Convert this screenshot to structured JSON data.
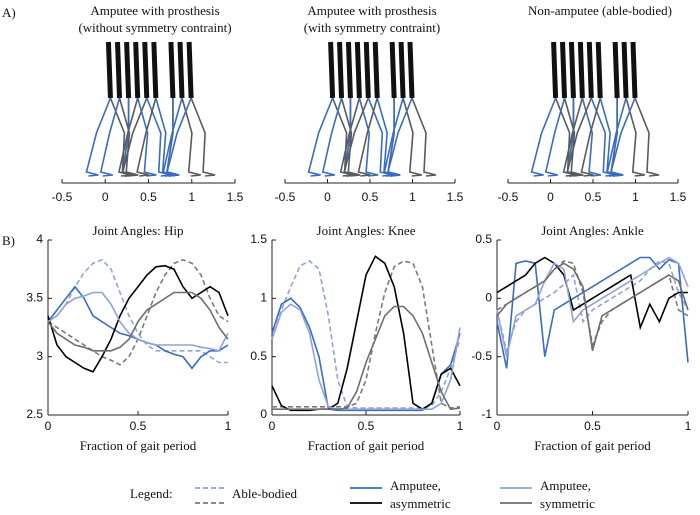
{
  "panel_labels": [
    "A)",
    "B)"
  ],
  "chart_data": [
    {
      "type": "stick",
      "title": [
        "Amputee with prosthesis",
        "(without symmetry contraint)"
      ],
      "xlim": [
        -0.5,
        1.5
      ],
      "xticks": [
        -0.5,
        0,
        0.5,
        1,
        1.5
      ]
    },
    {
      "type": "stick",
      "title": [
        "Amputee with prosthesis",
        "(with symmetry contraint)"
      ],
      "xlim": [
        -0.5,
        1.5
      ],
      "xticks": [
        -0.5,
        0,
        0.5,
        1,
        1.5
      ]
    },
    {
      "type": "stick",
      "title": [
        "Non-amputee (able-bodied)"
      ],
      "xlim": [
        -0.5,
        1.5
      ],
      "xticks": [
        -0.5,
        0,
        0.5,
        1,
        1.5
      ]
    },
    {
      "type": "line",
      "title": "Joint Angles: Hip",
      "xlabel": "Fraction of gait period",
      "x": [
        0,
        0.05,
        0.1,
        0.15,
        0.2,
        0.25,
        0.3,
        0.35,
        0.4,
        0.45,
        0.5,
        0.55,
        0.6,
        0.65,
        0.7,
        0.75,
        0.8,
        0.85,
        0.9,
        0.95,
        1
      ],
      "xlim": [
        0,
        1
      ],
      "xticks": [
        0,
        0.5,
        1
      ],
      "ylim": [
        2.5,
        4
      ],
      "yticks": [
        2.5,
        3,
        3.5,
        4
      ],
      "series": [
        {
          "color": "#8fa3d8",
          "dash": true,
          "values": [
            3.3,
            3.35,
            3.45,
            3.6,
            3.72,
            3.8,
            3.83,
            3.75,
            3.55,
            3.35,
            3.2,
            3.1,
            3.05,
            3.05,
            3.05,
            3.05,
            3.05,
            3.05,
            3.0,
            2.95,
            2.95
          ]
        },
        {
          "color": "#7a7a7a",
          "dash": true,
          "values": [
            3.3,
            3.25,
            3.2,
            3.15,
            3.1,
            3.05,
            3.0,
            2.97,
            2.93,
            3.0,
            3.15,
            3.35,
            3.55,
            3.7,
            3.8,
            3.83,
            3.8,
            3.7,
            3.5,
            3.35,
            3.3
          ]
        },
        {
          "color": "#3a6cc4",
          "dash": false,
          "values": [
            3.3,
            3.4,
            3.5,
            3.6,
            3.5,
            3.35,
            3.3,
            3.25,
            3.2,
            3.18,
            3.15,
            3.12,
            3.1,
            3.05,
            3.02,
            3.0,
            2.9,
            3.0,
            3.05,
            3.05,
            3.1
          ]
        },
        {
          "color": "#000000",
          "dash": false,
          "values": [
            3.35,
            3.1,
            3.0,
            2.95,
            2.9,
            2.87,
            3.0,
            3.15,
            3.35,
            3.5,
            3.6,
            3.7,
            3.77,
            3.78,
            3.75,
            3.6,
            3.5,
            3.55,
            3.6,
            3.55,
            3.35
          ]
        },
        {
          "color": "#8fa3d8",
          "dash": false,
          "values": [
            3.3,
            3.35,
            3.45,
            3.5,
            3.52,
            3.55,
            3.55,
            3.45,
            3.3,
            3.2,
            3.15,
            3.12,
            3.1,
            3.1,
            3.1,
            3.1,
            3.1,
            3.08,
            3.07,
            3.05,
            3.2
          ]
        },
        {
          "color": "#6e6e6e",
          "dash": false,
          "values": [
            3.3,
            3.2,
            3.15,
            3.1,
            3.08,
            3.05,
            3.05,
            3.05,
            3.08,
            3.15,
            3.3,
            3.4,
            3.45,
            3.5,
            3.55,
            3.55,
            3.55,
            3.5,
            3.4,
            3.25,
            3.15
          ]
        }
      ]
    },
    {
      "type": "line",
      "title": "Joint Angles: Knee",
      "xlabel": "Fraction of gait period",
      "x": [
        0,
        0.05,
        0.1,
        0.15,
        0.2,
        0.25,
        0.3,
        0.35,
        0.4,
        0.45,
        0.5,
        0.55,
        0.6,
        0.65,
        0.7,
        0.75,
        0.8,
        0.85,
        0.9,
        0.95,
        1
      ],
      "xlim": [
        0,
        1
      ],
      "xticks": [
        0,
        0.5,
        1
      ],
      "ylim": [
        0,
        1.5
      ],
      "yticks": [
        0,
        0.5,
        1,
        1.5
      ],
      "series": [
        {
          "color": "#8fa3d8",
          "dash": true,
          "values": [
            0.65,
            0.9,
            1.1,
            1.28,
            1.32,
            1.25,
            0.85,
            0.3,
            0.07,
            0.06,
            0.06,
            0.06,
            0.06,
            0.06,
            0.06,
            0.06,
            0.06,
            0.08,
            0.2,
            0.4,
            0.65
          ]
        },
        {
          "color": "#7a7a7a",
          "dash": true,
          "values": [
            0.07,
            0.07,
            0.07,
            0.07,
            0.07,
            0.07,
            0.07,
            0.07,
            0.07,
            0.1,
            0.3,
            0.7,
            1.05,
            1.27,
            1.32,
            1.3,
            1.1,
            0.6,
            0.1,
            0.06,
            0.07
          ]
        },
        {
          "color": "#3a6cc4",
          "dash": false,
          "values": [
            0.7,
            0.95,
            1.0,
            0.92,
            0.75,
            0.5,
            0.05,
            0.04,
            0.04,
            0.04,
            0.04,
            0.04,
            0.04,
            0.04,
            0.04,
            0.04,
            0.04,
            0.1,
            0.35,
            0.43,
            0.7
          ]
        },
        {
          "color": "#000000",
          "dash": false,
          "values": [
            0.25,
            0.08,
            0.04,
            0.04,
            0.04,
            0.05,
            0.05,
            0.1,
            0.4,
            0.8,
            1.2,
            1.36,
            1.3,
            1.1,
            0.7,
            0.1,
            0.05,
            0.1,
            0.35,
            0.4,
            0.25
          ]
        },
        {
          "color": "#8fa3d8",
          "dash": false,
          "values": [
            0.65,
            0.88,
            0.95,
            0.9,
            0.7,
            0.3,
            0.07,
            0.05,
            0.05,
            0.05,
            0.05,
            0.05,
            0.05,
            0.05,
            0.05,
            0.05,
            0.05,
            0.05,
            0.1,
            0.3,
            0.75
          ]
        },
        {
          "color": "#6e6e6e",
          "dash": false,
          "values": [
            0.05,
            0.05,
            0.05,
            0.05,
            0.05,
            0.05,
            0.05,
            0.05,
            0.06,
            0.2,
            0.45,
            0.65,
            0.85,
            0.93,
            0.93,
            0.85,
            0.7,
            0.45,
            0.2,
            0.05,
            0.06
          ]
        }
      ]
    },
    {
      "type": "line",
      "title": "Joint Angles: Ankle",
      "xlabel": "Fraction of gait period",
      "x": [
        0,
        0.05,
        0.1,
        0.15,
        0.2,
        0.25,
        0.3,
        0.35,
        0.4,
        0.45,
        0.5,
        0.55,
        0.6,
        0.65,
        0.7,
        0.75,
        0.8,
        0.85,
        0.9,
        0.95,
        1
      ],
      "xlim": [
        0,
        1
      ],
      "xticks": [
        0,
        0.5,
        1
      ],
      "ylim": [
        -1,
        0.5
      ],
      "yticks": [
        -1,
        -0.5,
        0,
        0.5
      ],
      "series": [
        {
          "color": "#8fa3d8",
          "dash": true,
          "values": [
            -0.1,
            -0.45,
            -0.2,
            -0.1,
            -0.05,
            0,
            0.05,
            0.12,
            0.2,
            -0.2,
            -0.1,
            -0.05,
            0,
            0.05,
            0.1,
            0.15,
            0.25,
            0.32,
            0.3,
            0.05,
            -0.1
          ]
        },
        {
          "color": "#7a7a7a",
          "dash": true,
          "values": [
            -0.1,
            -0.05,
            0,
            0.05,
            0.1,
            0.15,
            0.25,
            0.32,
            0.3,
            0.05,
            -0.4,
            -0.2,
            -0.1,
            -0.05,
            0,
            0.05,
            0.1,
            0.15,
            0.2,
            -0.1,
            -0.15
          ]
        },
        {
          "color": "#3a6cc4",
          "dash": false,
          "values": [
            -0.2,
            -0.6,
            0.3,
            0.32,
            0.3,
            -0.5,
            -0.1,
            -0.05,
            0,
            0.05,
            0.1,
            0.15,
            0.2,
            0.25,
            0.3,
            0.35,
            0.35,
            0.25,
            0.33,
            0.3,
            -0.55
          ]
        },
        {
          "color": "#000000",
          "dash": false,
          "values": [
            0.05,
            0.1,
            0.15,
            0.2,
            0.3,
            0.35,
            0.3,
            0.2,
            -0.1,
            -0.05,
            0,
            0.05,
            0.1,
            0.15,
            0.2,
            -0.25,
            -0.05,
            -0.2,
            0,
            0.05,
            0.05
          ]
        },
        {
          "color": "#8fa3d8",
          "dash": false,
          "values": [
            -0.1,
            -0.5,
            -0.15,
            -0.1,
            -0.05,
            0.15,
            0.3,
            0.25,
            -0.2,
            -0.1,
            -0.05,
            0,
            0.05,
            0.1,
            0.15,
            0.2,
            0.25,
            0.3,
            0.35,
            0.3,
            0.1
          ]
        },
        {
          "color": "#6e6e6e",
          "dash": false,
          "values": [
            -0.15,
            -0.05,
            0,
            0.05,
            0.1,
            0.15,
            0.25,
            0.3,
            0.25,
            0.1,
            -0.45,
            -0.15,
            -0.1,
            -0.05,
            0,
            0.05,
            0.1,
            0.15,
            0.2,
            0.15,
            -0.1
          ]
        }
      ]
    }
  ],
  "legend": {
    "label": "Legend:",
    "entries": [
      {
        "name": [
          "Able-bodied"
        ],
        "colors": [
          "#8fa3d8",
          "#7a7a7a"
        ],
        "dash": true
      },
      {
        "name": [
          "Amputee,",
          "asymmetric"
        ],
        "colors": [
          "#3a6cc4",
          "#000000"
        ],
        "dash": false
      },
      {
        "name": [
          "Amputee,",
          "symmetric"
        ],
        "colors": [
          "#8fa3d8",
          "#6e6e6e"
        ],
        "dash": false
      }
    ]
  }
}
